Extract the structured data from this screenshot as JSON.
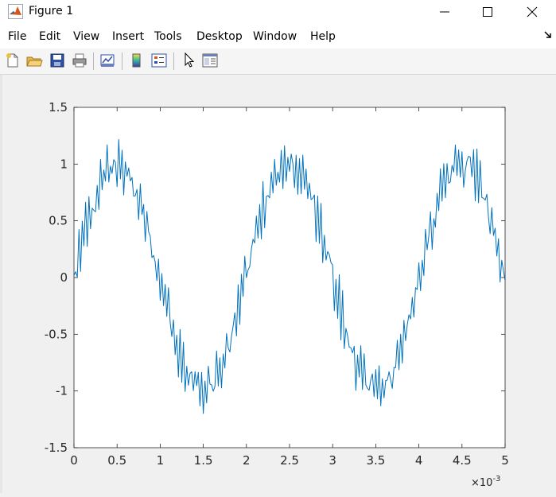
{
  "window": {
    "title": "Figure 1",
    "app_icon": "matlab-logo-icon",
    "controls": [
      "minimize-icon",
      "maximize-icon",
      "close-icon"
    ]
  },
  "menu": {
    "items": [
      "File",
      "Edit",
      "View",
      "Insert",
      "Tools",
      "Desktop",
      "Window",
      "Help"
    ],
    "dock_icon": "dock-arrow-icon"
  },
  "toolbar": {
    "buttons": [
      "new-figure-icon",
      "open-file-icon",
      "save-icon",
      "print-icon",
      "link-plot-icon",
      "insert-colorbar-icon",
      "insert-legend-icon",
      "edit-plot-icon",
      "property-inspector-icon"
    ]
  },
  "chart_data": {
    "type": "line",
    "title": "",
    "xlabel": "",
    "ylabel": "",
    "xlim": [
      0,
      0.005
    ],
    "ylim": [
      -1.5,
      1.5
    ],
    "x_ticks": [
      "0",
      "0.5",
      "1",
      "1.5",
      "2",
      "2.5",
      "3",
      "3.5",
      "4",
      "4.5",
      "5"
    ],
    "y_ticks": [
      "1.5",
      "1",
      "0.5",
      "0",
      "-0.5",
      "-1",
      "-1.5"
    ],
    "x_exponent": "×10",
    "x_exponent_power": "-3",
    "grid": false,
    "series": [
      {
        "color": "#0072bd",
        "description": "sine wave, period 2e-3 s, amplitude ~1, with additive high-frequency noise",
        "x": [
          0,
          0.0002,
          0.0004,
          0.0006,
          0.0008,
          0.001,
          0.0012,
          0.0014,
          0.0016,
          0.0018,
          0.002,
          0.0022,
          0.0024,
          0.0026,
          0.0028,
          0.003,
          0.0032,
          0.0034,
          0.0036,
          0.0038,
          0.004,
          0.0042,
          0.0044,
          0.0046,
          0.0048,
          0.005
        ],
        "y": [
          0.05,
          0.65,
          0.85,
          1.1,
          0.75,
          0.05,
          -0.65,
          -1.1,
          -0.9,
          -0.6,
          -0.05,
          0.6,
          0.95,
          1.1,
          0.6,
          0.0,
          -0.6,
          -1.05,
          -0.8,
          -0.5,
          0.0,
          0.6,
          0.95,
          1.05,
          0.6,
          -0.1
        ]
      }
    ]
  }
}
